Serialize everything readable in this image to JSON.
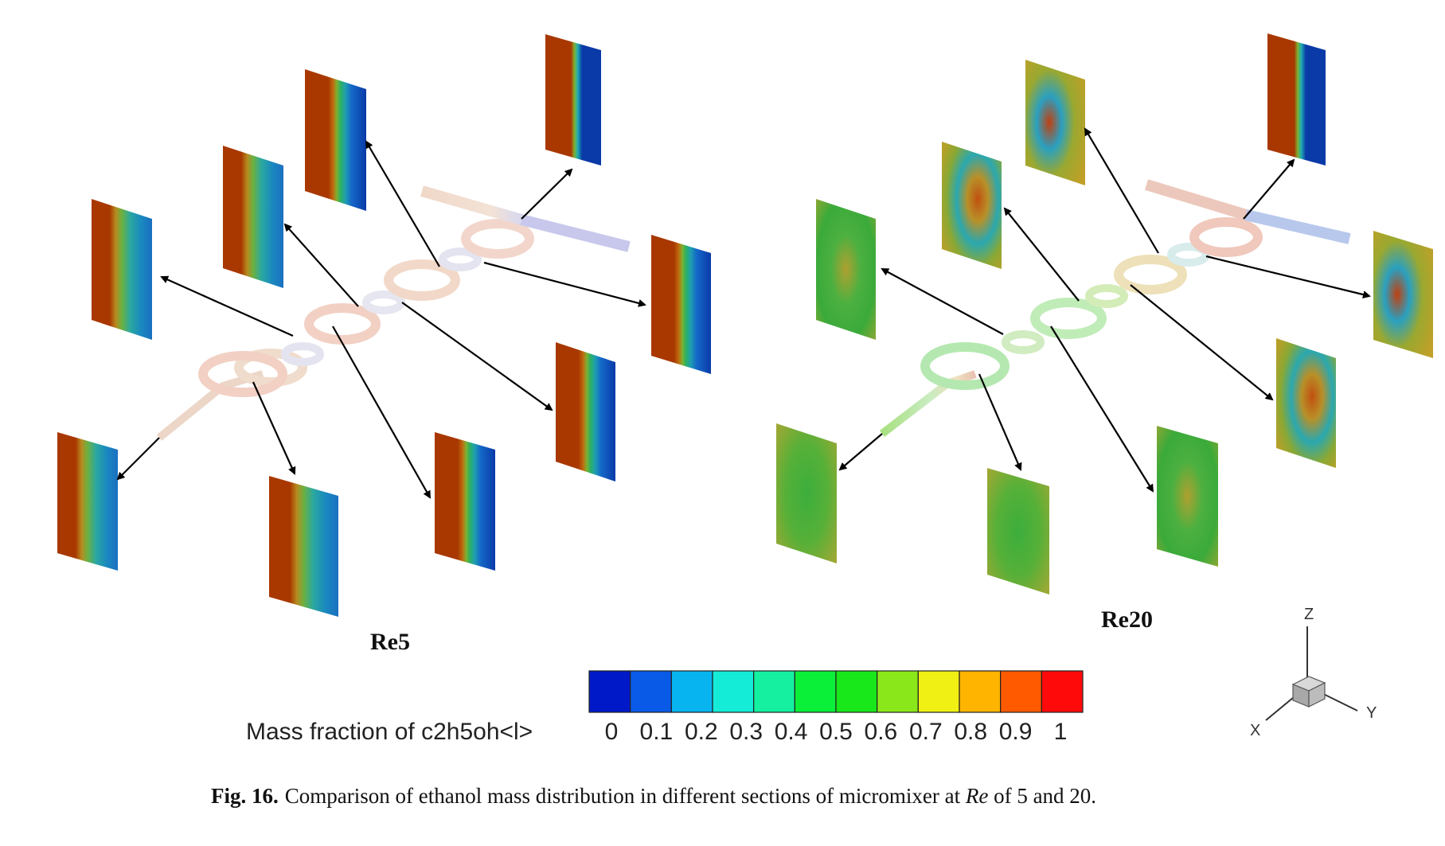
{
  "panels": {
    "left_label": "Re5",
    "right_label": "Re20"
  },
  "legend": {
    "title": "Mass fraction of c2h5oh<l>",
    "ticks": [
      "0",
      "0.1",
      "0.2",
      "0.3",
      "0.4",
      "0.5",
      "0.6",
      "0.7",
      "0.8",
      "0.9",
      "1"
    ],
    "colors": [
      "#0019c8",
      "#0a5ae8",
      "#08b4f0",
      "#14ecd8",
      "#14f0a0",
      "#0aef38",
      "#18e81a",
      "#8ae81a",
      "#f0f014",
      "#ffb400",
      "#ff5a00",
      "#ff0a0a"
    ]
  },
  "axes": {
    "x": "X",
    "y": "Y",
    "z": "Z"
  },
  "caption": {
    "fig_number": "Fig. 16.",
    "text_before": "Comparison of ethanol mass distribution in different sections of micromixer at ",
    "re": "Re",
    "text_after": " of 5 and 20."
  }
}
